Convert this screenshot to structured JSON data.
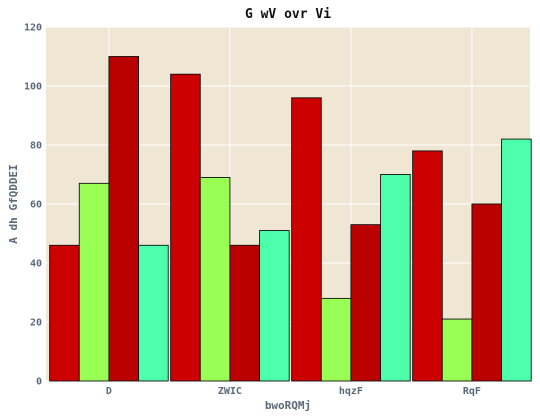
{
  "chart_data": {
    "type": "bar",
    "title": "G wV ovr Vi",
    "xlabel": "bwoRQMj",
    "ylabel": "A dh GfQDDEI",
    "categories": [
      "D",
      "ZWIC",
      "hqzF",
      "RqF"
    ],
    "ylim": [
      0,
      120
    ],
    "yticks": [
      0,
      20,
      40,
      60,
      80,
      100,
      120
    ],
    "grid": true,
    "legend": "none",
    "series": [
      {
        "values": [
          46,
          104,
          96,
          78
        ],
        "color": "#cc0000"
      },
      {
        "values": [
          67,
          69,
          28,
          21
        ],
        "color": "#99ff55"
      },
      {
        "values": [
          110,
          46,
          53,
          60
        ],
        "color": "#bb0000"
      },
      {
        "values": [
          46,
          51,
          70,
          82
        ],
        "color": "#4dffaa"
      }
    ],
    "colors": {
      "plot_background": "#efe6d4",
      "grid": "#ffffff",
      "bar_edge": "#111111"
    }
  }
}
